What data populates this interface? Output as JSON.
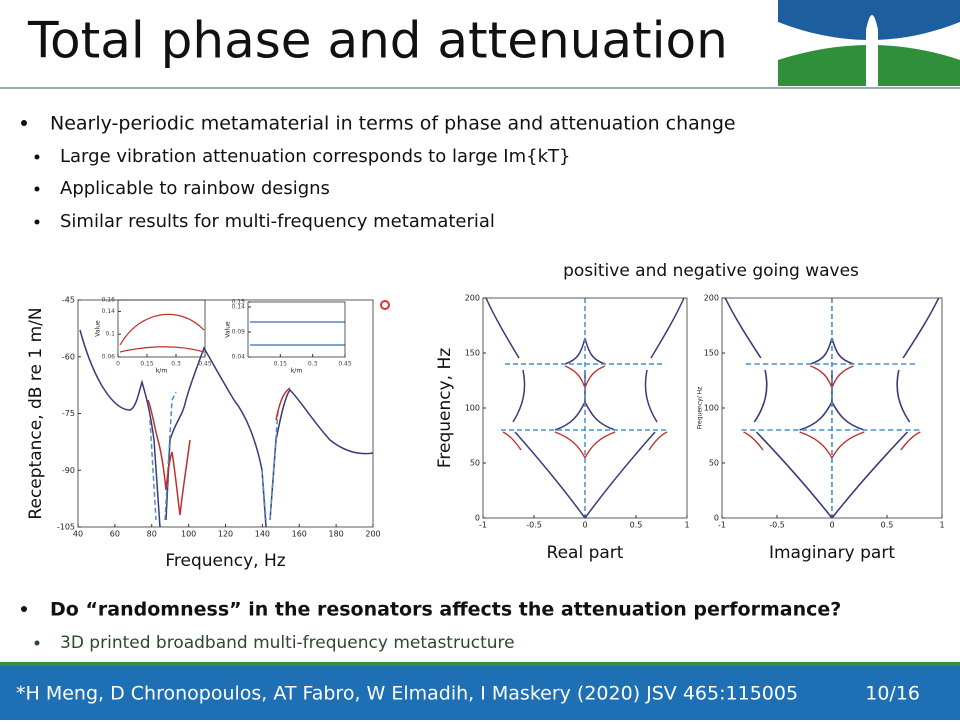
{
  "header": {
    "title": "Total phase and attenuation"
  },
  "bullets": [
    {
      "text": "Nearly-periodic metamaterial in terms of phase and attenuation change",
      "sub": [
        "Large vibration attenuation corresponds to large Im{kT}",
        "Applicable to rainbow designs",
        "Similar results for multi-frequency metamaterial"
      ]
    }
  ],
  "waves_title": "positive and negative going waves",
  "plots": [
    {
      "ylabel": "Receptance, dB re 1 m/N",
      "xlabel": "Frequency, Hz",
      "xlim": [
        40,
        200
      ],
      "xticks": [
        40,
        60,
        80,
        100,
        120,
        140,
        160,
        180,
        200
      ],
      "ylim": [
        -105,
        -45
      ],
      "yticks": [
        -45,
        -60,
        -75,
        -90,
        -105
      ]
    },
    {
      "ylabel": "Frequency, Hz",
      "xlabel": "Real part",
      "xlim": [
        -1,
        1
      ],
      "xticks": [
        -1,
        -0.5,
        0,
        0.5,
        1
      ],
      "ylim": [
        0,
        200
      ],
      "yticks": [
        0,
        50,
        100,
        150,
        200
      ]
    },
    {
      "ylabel": "Frequency/ Hz",
      "xlabel": "Imaginary part",
      "xlim": [
        -1,
        1
      ],
      "xticks": [
        -1,
        -0.5,
        0,
        0.5,
        1
      ],
      "ylim": [
        0,
        200
      ],
      "yticks": [
        0,
        50,
        100,
        150,
        200
      ]
    }
  ],
  "insets": [
    {
      "ylabel": "Value",
      "xlabel": "k/m",
      "xlim": [
        0,
        0.45
      ],
      "xticks": [
        0,
        0.15,
        0.3,
        0.45
      ],
      "ylim": [
        0.06,
        0.16
      ],
      "yticks": [
        0.06,
        0.1,
        0.14,
        0.16
      ]
    },
    {
      "ylabel": "Value",
      "xlabel": "k/m",
      "xlim": [
        0,
        0.45
      ],
      "xticks": [
        0.15,
        0.3,
        0.45
      ],
      "ylim": [
        0.04,
        0.15
      ],
      "yticks": [
        0.04,
        0.09,
        0.14,
        0.15
      ]
    }
  ],
  "question": {
    "text": "Do “randomness” in the resonators affects the attenuation performance?",
    "sub": "3D printed broadband multi-frequency metastructure"
  },
  "footer": {
    "reference": "*H Meng, D Chronopoulos, AT Fabro, W Elmadih, I Maskery (2020) JSV 465:115005",
    "page": "10/16"
  }
}
